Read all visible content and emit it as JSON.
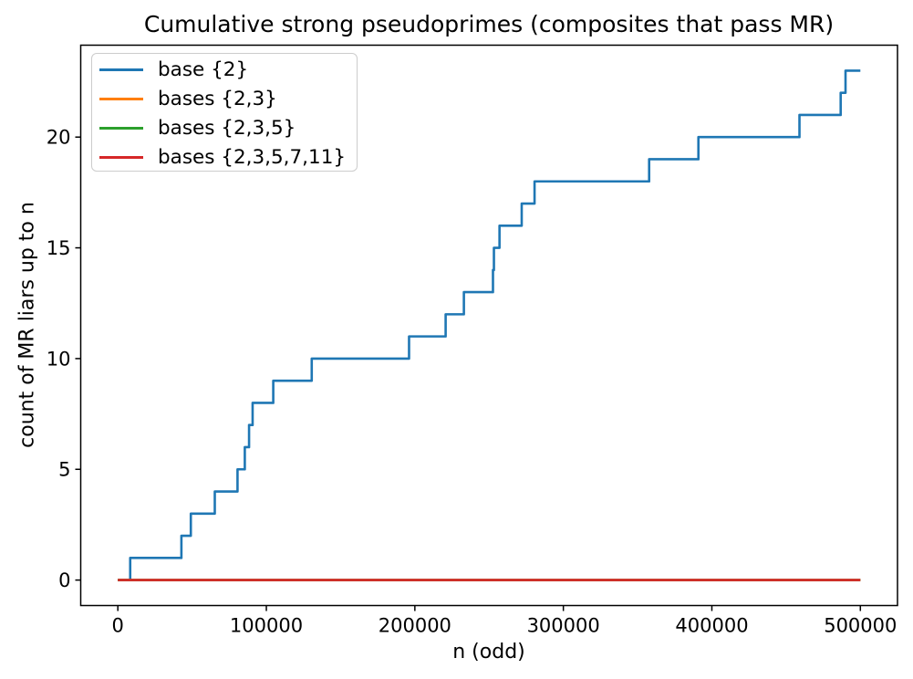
{
  "chart_data": {
    "type": "step-line",
    "title": "Cumulative strong pseudoprimes (composites that pass MR)",
    "xlabel": "n (odd)",
    "ylabel": "count of MR liars up to n",
    "xlim": [
      -25000,
      525000
    ],
    "ylim": [
      -1.15,
      24.15
    ],
    "grid": false,
    "legend_position": "upper left",
    "background_color": "#ffffff",
    "spine_color": "#000000",
    "xticks": {
      "values": [
        0,
        100000,
        200000,
        300000,
        400000,
        500000
      ],
      "labels": [
        "0",
        "100000",
        "200000",
        "300000",
        "400000",
        "500000"
      ]
    },
    "yticks": {
      "values": [
        0,
        5,
        10,
        15,
        20
      ],
      "labels": [
        "0",
        "5",
        "10",
        "15",
        "20"
      ]
    },
    "series": [
      {
        "label": "base {2}",
        "color": "#1f77b4",
        "style": "cumulative-step",
        "x_start": 0,
        "x_end": 500000,
        "start_count": 0,
        "final_count": 23,
        "jump_x": [
          8321,
          42799,
          49141,
          65281,
          80581,
          85489,
          88357,
          90751,
          104653,
          130561,
          196093,
          220729,
          233017,
          252601,
          253241,
          256999,
          271951,
          280601,
          357761,
          390937,
          458989,
          486737,
          490000
        ]
      },
      {
        "label": "bases {2,3}",
        "color": "#ff7f0e",
        "style": "constant",
        "x_start": 0,
        "x_end": 500000,
        "value": 0
      },
      {
        "label": "bases {2,3,5}",
        "color": "#2ca02c",
        "style": "constant",
        "x_start": 0,
        "x_end": 500000,
        "value": 0
      },
      {
        "label": "bases {2,3,5,7,11}",
        "color": "#d62728",
        "style": "constant",
        "x_start": 0,
        "x_end": 500000,
        "value": 0
      }
    ]
  }
}
